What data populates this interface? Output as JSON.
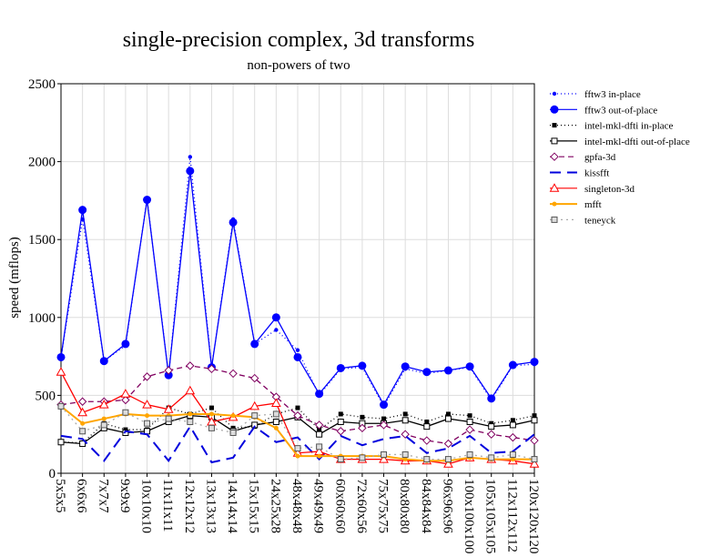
{
  "chart_data": {
    "type": "line",
    "title": "single-precision complex, 3d transforms",
    "subtitle": "non-powers of two",
    "xlabel": "",
    "ylabel": "speed (mflops)",
    "ylim": [
      0,
      2500
    ],
    "yticks": [
      0,
      500,
      1000,
      1500,
      2000,
      2500
    ],
    "grid": true,
    "legend_position": "top-right",
    "categories": [
      "5x5x5",
      "6x6x6",
      "7x7x7",
      "9x9x9",
      "10x10x10",
      "11x11x11",
      "12x12x12",
      "13x13x13",
      "14x14x14",
      "15x15x15",
      "24x25x28",
      "48x48x48",
      "49x49x49",
      "60x60x60",
      "72x60x56",
      "75x75x75",
      "80x80x80",
      "84x84x84",
      "96x96x96",
      "100x100x100",
      "105x105x105",
      "112x112x112",
      "120x120x120"
    ],
    "series": [
      {
        "name": "fftw3 in-place",
        "color": "#0000ff",
        "dash": "1,3",
        "marker": "dot-small",
        "values": [
          740,
          1630,
          720,
          820,
          1760,
          630,
          2030,
          680,
          1630,
          830,
          920,
          790,
          500,
          670,
          680,
          430,
          670,
          640,
          660,
          680,
          470,
          690,
          700
        ]
      },
      {
        "name": "fftw3 out-of-place",
        "color": "#0000ff",
        "dash": "",
        "marker": "dot-large",
        "values": [
          745,
          1690,
          720,
          830,
          1755,
          630,
          1940,
          680,
          1610,
          830,
          1000,
          745,
          510,
          675,
          690,
          440,
          685,
          650,
          660,
          685,
          480,
          695,
          715
        ]
      },
      {
        "name": "intel-mkl-dfti in-place",
        "color": "#000000",
        "dash": "1,3",
        "marker": "square-filled",
        "values": [
          200,
          195,
          320,
          280,
          280,
          420,
          380,
          420,
          290,
          300,
          380,
          420,
          280,
          380,
          360,
          350,
          380,
          330,
          380,
          370,
          320,
          340,
          370
        ]
      },
      {
        "name": "intel-mkl-dfti out-of-place",
        "color": "#000000",
        "dash": "",
        "marker": "square-open",
        "values": [
          200,
          190,
          290,
          260,
          270,
          330,
          370,
          360,
          270,
          310,
          330,
          360,
          250,
          330,
          320,
          320,
          340,
          300,
          350,
          330,
          300,
          310,
          340
        ]
      },
      {
        "name": "gpfa-3d",
        "color": "#800060",
        "dash": "6,4",
        "marker": "diamond",
        "values": [
          440,
          460,
          460,
          470,
          620,
          660,
          690,
          670,
          640,
          610,
          490,
          370,
          310,
          270,
          290,
          310,
          250,
          210,
          190,
          280,
          250,
          230,
          210
        ]
      },
      {
        "name": "kissfft",
        "color": "#0000dd",
        "dash": "12,7",
        "marker": "none",
        "values": [
          240,
          220,
          80,
          270,
          250,
          80,
          300,
          70,
          100,
          300,
          200,
          230,
          90,
          240,
          180,
          220,
          240,
          130,
          160,
          240,
          130,
          140,
          250
        ]
      },
      {
        "name": "singleton-3d",
        "color": "#ff0000",
        "dash": "",
        "marker": "triangle",
        "values": [
          650,
          390,
          440,
          510,
          440,
          410,
          530,
          330,
          360,
          430,
          450,
          130,
          140,
          90,
          90,
          90,
          80,
          80,
          60,
          100,
          90,
          80,
          60
        ]
      },
      {
        "name": "mfft",
        "color": "#ffa500",
        "dash": "",
        "marker": "dot-orange",
        "values": [
          430,
          320,
          350,
          380,
          370,
          370,
          380,
          380,
          370,
          360,
          290,
          110,
          110,
          110,
          110,
          110,
          90,
          80,
          80,
          100,
          90,
          90,
          90
        ]
      },
      {
        "name": "teneyck",
        "color": "#aaaaaa",
        "dash": "2,4",
        "marker": "square-gray",
        "values": [
          430,
          270,
          310,
          390,
          320,
          350,
          330,
          290,
          260,
          370,
          380,
          160,
          170,
          90,
          100,
          120,
          120,
          90,
          90,
          120,
          100,
          120,
          90
        ]
      }
    ]
  }
}
